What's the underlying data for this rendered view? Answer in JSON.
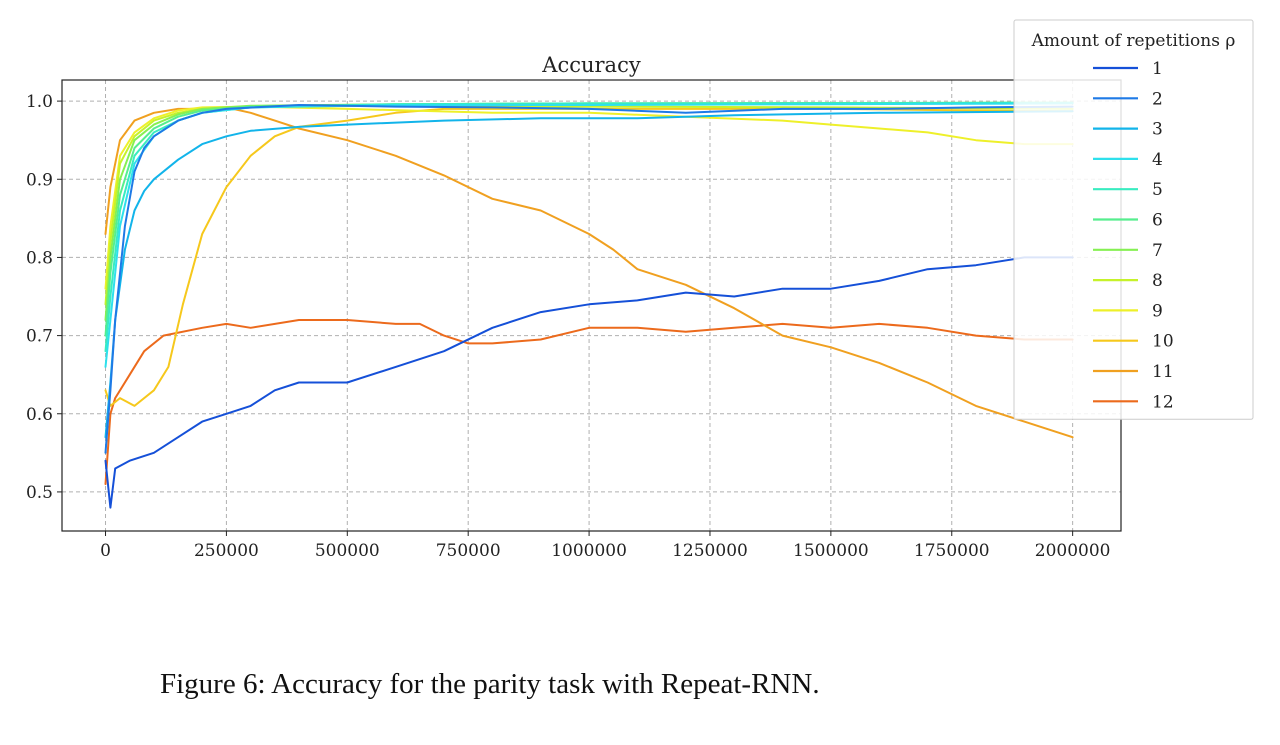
{
  "caption": "Figure 6: Accuracy for the parity task with Repeat-RNN.",
  "chart_data": {
    "type": "line",
    "title": "Accuracy",
    "xlabel": "",
    "ylabel": "",
    "xlim": [
      -90000,
      2100000
    ],
    "ylim": [
      0.45,
      1.027
    ],
    "xticks": [
      0,
      250000,
      500000,
      750000,
      1000000,
      1250000,
      1500000,
      1750000,
      2000000
    ],
    "xtick_labels": [
      "0",
      "250000",
      "500000",
      "750000",
      "1000000",
      "1250000",
      "1500000",
      "1750000",
      "2000000"
    ],
    "yticks": [
      0.5,
      0.6,
      0.7,
      0.8,
      0.9,
      1.0
    ],
    "ytick_labels": [
      "0.5",
      "0.6",
      "0.7",
      "0.8",
      "0.9",
      "1.0"
    ],
    "grid": true,
    "legend": {
      "title": "Amount of repetitions ρ",
      "placement": "top-right, outside"
    },
    "series": [
      {
        "name": "1",
        "color": "#1550d8",
        "points": [
          [
            0,
            0.54
          ],
          [
            10000,
            0.48
          ],
          [
            20000,
            0.53
          ],
          [
            50000,
            0.54
          ],
          [
            100000,
            0.55
          ],
          [
            150000,
            0.57
          ],
          [
            200000,
            0.59
          ],
          [
            250000,
            0.6
          ],
          [
            300000,
            0.61
          ],
          [
            350000,
            0.63
          ],
          [
            400000,
            0.64
          ],
          [
            500000,
            0.64
          ],
          [
            600000,
            0.66
          ],
          [
            700000,
            0.68
          ],
          [
            800000,
            0.71
          ],
          [
            900000,
            0.73
          ],
          [
            1000000,
            0.74
          ],
          [
            1100000,
            0.745
          ],
          [
            1200000,
            0.755
          ],
          [
            1300000,
            0.75
          ],
          [
            1400000,
            0.76
          ],
          [
            1500000,
            0.76
          ],
          [
            1600000,
            0.77
          ],
          [
            1700000,
            0.785
          ],
          [
            1800000,
            0.79
          ],
          [
            1900000,
            0.8
          ],
          [
            2000000,
            0.8
          ]
        ]
      },
      {
        "name": "2",
        "color": "#1e7ae6",
        "points": [
          [
            0,
            0.55
          ],
          [
            10000,
            0.63
          ],
          [
            20000,
            0.72
          ],
          [
            40000,
            0.84
          ],
          [
            60000,
            0.91
          ],
          [
            80000,
            0.94
          ],
          [
            100000,
            0.955
          ],
          [
            150000,
            0.975
          ],
          [
            200000,
            0.985
          ],
          [
            250000,
            0.99
          ],
          [
            400000,
            0.995
          ],
          [
            600000,
            0.993
          ],
          [
            800000,
            0.992
          ],
          [
            1000000,
            0.99
          ],
          [
            1200000,
            0.985
          ],
          [
            1400000,
            0.99
          ],
          [
            1600000,
            0.99
          ],
          [
            1800000,
            0.992
          ],
          [
            2000000,
            0.993
          ]
        ]
      },
      {
        "name": "3",
        "color": "#12b4ea",
        "points": [
          [
            0,
            0.57
          ],
          [
            10000,
            0.64
          ],
          [
            20000,
            0.72
          ],
          [
            40000,
            0.81
          ],
          [
            60000,
            0.86
          ],
          [
            80000,
            0.885
          ],
          [
            100000,
            0.9
          ],
          [
            150000,
            0.925
          ],
          [
            200000,
            0.945
          ],
          [
            250000,
            0.955
          ],
          [
            300000,
            0.962
          ],
          [
            400000,
            0.967
          ],
          [
            500000,
            0.97
          ],
          [
            700000,
            0.975
          ],
          [
            900000,
            0.978
          ],
          [
            1000000,
            0.978
          ],
          [
            1100000,
            0.978
          ],
          [
            1200000,
            0.98
          ],
          [
            1300000,
            0.982
          ],
          [
            1600000,
            0.985
          ],
          [
            2000000,
            0.987
          ]
        ]
      },
      {
        "name": "4",
        "color": "#2ee0ec",
        "points": [
          [
            0,
            0.66
          ],
          [
            10000,
            0.72
          ],
          [
            30000,
            0.84
          ],
          [
            60000,
            0.92
          ],
          [
            100000,
            0.955
          ],
          [
            150000,
            0.975
          ],
          [
            200000,
            0.985
          ],
          [
            300000,
            0.992
          ],
          [
            600000,
            0.995
          ],
          [
            1000000,
            0.995
          ],
          [
            1500000,
            0.996
          ],
          [
            2000000,
            0.997
          ]
        ]
      },
      {
        "name": "5",
        "color": "#38ecc0",
        "points": [
          [
            0,
            0.68
          ],
          [
            10000,
            0.75
          ],
          [
            30000,
            0.86
          ],
          [
            60000,
            0.93
          ],
          [
            100000,
            0.96
          ],
          [
            150000,
            0.975
          ],
          [
            200000,
            0.985
          ],
          [
            300000,
            0.992
          ],
          [
            600000,
            0.996
          ],
          [
            1000000,
            0.997
          ],
          [
            1500000,
            0.997
          ],
          [
            2000000,
            0.998
          ]
        ]
      },
      {
        "name": "6",
        "color": "#56ee8e",
        "points": [
          [
            0,
            0.7
          ],
          [
            10000,
            0.78
          ],
          [
            30000,
            0.88
          ],
          [
            60000,
            0.94
          ],
          [
            100000,
            0.965
          ],
          [
            150000,
            0.98
          ],
          [
            200000,
            0.988
          ],
          [
            300000,
            0.993
          ],
          [
            600000,
            0.996
          ],
          [
            1000000,
            0.997
          ],
          [
            2000000,
            0.998
          ]
        ]
      },
      {
        "name": "7",
        "color": "#86f052",
        "points": [
          [
            0,
            0.72
          ],
          [
            10000,
            0.8
          ],
          [
            30000,
            0.9
          ],
          [
            60000,
            0.95
          ],
          [
            100000,
            0.97
          ],
          [
            150000,
            0.983
          ],
          [
            200000,
            0.99
          ],
          [
            300000,
            0.994
          ],
          [
            600000,
            0.996
          ],
          [
            1000000,
            0.997
          ],
          [
            2000000,
            0.998
          ]
        ]
      },
      {
        "name": "8",
        "color": "#c6f22a",
        "points": [
          [
            0,
            0.74
          ],
          [
            10000,
            0.82
          ],
          [
            30000,
            0.92
          ],
          [
            60000,
            0.955
          ],
          [
            100000,
            0.975
          ],
          [
            150000,
            0.985
          ],
          [
            200000,
            0.99
          ],
          [
            300000,
            0.993
          ],
          [
            600000,
            0.994
          ],
          [
            1000000,
            0.993
          ],
          [
            1500000,
            0.992
          ],
          [
            2000000,
            0.99
          ]
        ]
      },
      {
        "name": "9",
        "color": "#eef02a",
        "points": [
          [
            0,
            0.76
          ],
          [
            10000,
            0.84
          ],
          [
            30000,
            0.93
          ],
          [
            60000,
            0.96
          ],
          [
            100000,
            0.978
          ],
          [
            150000,
            0.988
          ],
          [
            200000,
            0.992
          ],
          [
            300000,
            0.993
          ],
          [
            500000,
            0.99
          ],
          [
            800000,
            0.985
          ],
          [
            1000000,
            0.985
          ],
          [
            1200000,
            0.98
          ],
          [
            1400000,
            0.975
          ],
          [
            1500000,
            0.97
          ],
          [
            1600000,
            0.965
          ],
          [
            1700000,
            0.96
          ],
          [
            1800000,
            0.95
          ],
          [
            1900000,
            0.945
          ],
          [
            2000000,
            0.945
          ]
        ]
      },
      {
        "name": "10",
        "color": "#f6c81c",
        "points": [
          [
            0,
            0.63
          ],
          [
            10000,
            0.61
          ],
          [
            30000,
            0.62
          ],
          [
            60000,
            0.61
          ],
          [
            100000,
            0.63
          ],
          [
            130000,
            0.66
          ],
          [
            160000,
            0.74
          ],
          [
            200000,
            0.83
          ],
          [
            250000,
            0.89
          ],
          [
            300000,
            0.93
          ],
          [
            350000,
            0.955
          ],
          [
            400000,
            0.967
          ],
          [
            500000,
            0.975
          ],
          [
            600000,
            0.985
          ],
          [
            700000,
            0.99
          ],
          [
            800000,
            0.99
          ],
          [
            1000000,
            0.99
          ],
          [
            1200000,
            0.99
          ],
          [
            1500000,
            0.99
          ],
          [
            1800000,
            0.988
          ],
          [
            2000000,
            0.987
          ]
        ]
      },
      {
        "name": "11",
        "color": "#f0a020",
        "points": [
          [
            0,
            0.83
          ],
          [
            10000,
            0.89
          ],
          [
            30000,
            0.95
          ],
          [
            60000,
            0.975
          ],
          [
            100000,
            0.985
          ],
          [
            150000,
            0.99
          ],
          [
            200000,
            0.99
          ],
          [
            250000,
            0.992
          ],
          [
            300000,
            0.985
          ],
          [
            350000,
            0.975
          ],
          [
            400000,
            0.965
          ],
          [
            500000,
            0.95
          ],
          [
            600000,
            0.93
          ],
          [
            700000,
            0.905
          ],
          [
            800000,
            0.875
          ],
          [
            900000,
            0.86
          ],
          [
            1000000,
            0.83
          ],
          [
            1050000,
            0.81
          ],
          [
            1100000,
            0.785
          ],
          [
            1200000,
            0.765
          ],
          [
            1300000,
            0.735
          ],
          [
            1400000,
            0.7
          ],
          [
            1500000,
            0.685
          ],
          [
            1600000,
            0.665
          ],
          [
            1700000,
            0.64
          ],
          [
            1800000,
            0.61
          ],
          [
            1900000,
            0.59
          ],
          [
            2000000,
            0.57
          ]
        ]
      },
      {
        "name": "12",
        "color": "#ec6a1c",
        "points": [
          [
            0,
            0.51
          ],
          [
            10000,
            0.6
          ],
          [
            20000,
            0.62
          ],
          [
            50000,
            0.65
          ],
          [
            80000,
            0.68
          ],
          [
            120000,
            0.7
          ],
          [
            200000,
            0.71
          ],
          [
            250000,
            0.715
          ],
          [
            300000,
            0.71
          ],
          [
            400000,
            0.72
          ],
          [
            500000,
            0.72
          ],
          [
            600000,
            0.715
          ],
          [
            650000,
            0.715
          ],
          [
            700000,
            0.7
          ],
          [
            750000,
            0.69
          ],
          [
            800000,
            0.69
          ],
          [
            900000,
            0.695
          ],
          [
            1000000,
            0.71
          ],
          [
            1100000,
            0.71
          ],
          [
            1200000,
            0.705
          ],
          [
            1300000,
            0.71
          ],
          [
            1400000,
            0.715
          ],
          [
            1500000,
            0.71
          ],
          [
            1600000,
            0.715
          ],
          [
            1700000,
            0.71
          ],
          [
            1800000,
            0.7
          ],
          [
            1900000,
            0.695
          ],
          [
            2000000,
            0.695
          ]
        ]
      }
    ]
  }
}
